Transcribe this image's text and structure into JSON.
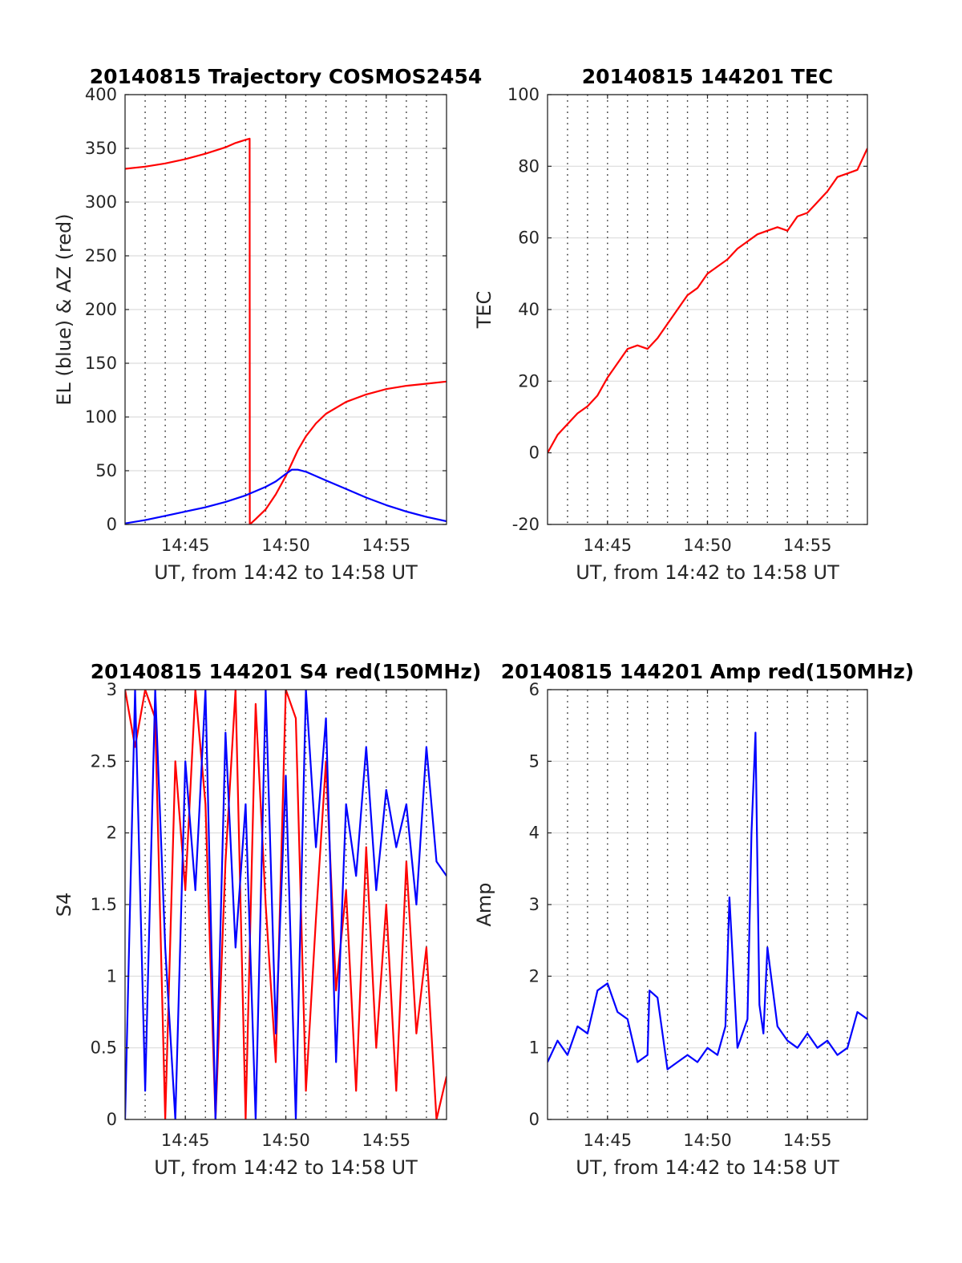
{
  "chart_data": [
    {
      "id": "trajectory",
      "type": "line",
      "title": "20140815 Trajectory COSMOS2454",
      "xlabel": "UT, from 14:42 to 14:58 UT",
      "ylabel": "EL (blue) & AZ (red)",
      "xlim": [
        0,
        16
      ],
      "ylim": [
        0,
        400
      ],
      "xticks": [
        3,
        8,
        13
      ],
      "xtick_labels": [
        "14:45",
        "14:50",
        "14:55"
      ],
      "yticks": [
        0,
        50,
        100,
        150,
        200,
        250,
        300,
        350,
        400
      ],
      "ytick_labels": [
        "0",
        "50",
        "100",
        "150",
        "200",
        "250",
        "300",
        "350",
        "400"
      ],
      "grid": true,
      "series": [
        {
          "color": "#ff0000",
          "x": [
            0,
            1,
            2,
            3,
            4,
            5,
            5.5,
            6,
            6.2,
            6.21,
            6.5,
            7,
            7.5,
            8,
            8.3,
            8.6,
            9,
            9.5,
            10,
            11,
            12,
            13,
            14,
            15,
            16
          ],
          "y": [
            331,
            333,
            336,
            340,
            345,
            351,
            355,
            358,
            359,
            0,
            5,
            14,
            28,
            45,
            57,
            69,
            82,
            94,
            103,
            114,
            121,
            126,
            129,
            131,
            133
          ]
        },
        {
          "color": "#0000ff",
          "x": [
            0,
            1,
            2,
            3,
            4,
            5,
            6,
            7,
            7.5,
            8,
            8.3,
            8.6,
            9,
            10,
            11,
            12,
            13,
            14,
            15,
            16
          ],
          "y": [
            1,
            4,
            8,
            12,
            16,
            21,
            27,
            35,
            40,
            47,
            51,
            51,
            49,
            41,
            33,
            25,
            18,
            12,
            7,
            3
          ]
        }
      ]
    },
    {
      "id": "tec",
      "type": "line",
      "title": "20140815 144201 TEC",
      "xlabel": "UT, from 14:42 to 14:58 UT",
      "ylabel": "TEC",
      "xlim": [
        0,
        16
      ],
      "ylim": [
        -20,
        100
      ],
      "xticks": [
        3,
        8,
        13
      ],
      "xtick_labels": [
        "14:45",
        "14:50",
        "14:55"
      ],
      "yticks": [
        -20,
        0,
        20,
        40,
        60,
        80,
        100
      ],
      "ytick_labels": [
        "-20",
        "0",
        "20",
        "40",
        "60",
        "80",
        "100"
      ],
      "grid": true,
      "series": [
        {
          "color": "#ff0000",
          "x": [
            0,
            0.5,
            1,
            1.5,
            2,
            2.5,
            3,
            3.5,
            4,
            4.5,
            5,
            5.5,
            6,
            6.5,
            7,
            7.5,
            8,
            8.5,
            9,
            9.5,
            10,
            10.5,
            11,
            11.5,
            12,
            12.5,
            13,
            13.5,
            14,
            14.5,
            15,
            15.5,
            16
          ],
          "y": [
            0,
            5,
            8,
            11,
            13,
            16,
            21,
            25,
            29,
            30,
            29,
            32,
            36,
            40,
            44,
            46,
            50,
            52,
            54,
            57,
            59,
            61,
            62,
            63,
            62,
            66,
            67,
            70,
            73,
            77,
            78,
            79,
            85
          ]
        }
      ]
    },
    {
      "id": "s4",
      "type": "line",
      "title": "20140815 144201 S4 red(150MHz)",
      "xlabel": "UT, from 14:42 to 14:58 UT",
      "ylabel": "S4",
      "xlim": [
        0,
        16
      ],
      "ylim": [
        0,
        3
      ],
      "xticks": [
        3,
        8,
        13
      ],
      "xtick_labels": [
        "14:45",
        "14:50",
        "14:55"
      ],
      "yticks": [
        0,
        0.5,
        1,
        1.5,
        2,
        2.5,
        3
      ],
      "ytick_labels": [
        "0",
        "0.5",
        "1",
        "1.5",
        "2",
        "2.5",
        "3"
      ],
      "grid": true,
      "series": [
        {
          "color": "#ff0000",
          "x": [
            0,
            0.5,
            1,
            1.5,
            2,
            2.5,
            3,
            3.5,
            4,
            4.5,
            5,
            5.5,
            6,
            6.5,
            7,
            7.5,
            8,
            8.5,
            9,
            9.5,
            10,
            10.5,
            11,
            11.5,
            12,
            12.5,
            13,
            13.5,
            14,
            14.5,
            15,
            15.5,
            16
          ],
          "y": [
            3,
            2.6,
            3,
            2.8,
            0,
            2.5,
            1.6,
            3,
            2.2,
            0,
            1.8,
            3,
            0,
            2.9,
            1.5,
            0.4,
            3,
            2.8,
            0.2,
            1.4,
            2.5,
            0.9,
            1.6,
            0.2,
            1.9,
            0.5,
            1.5,
            0.2,
            1.8,
            0.6,
            1.2,
            0,
            0.3
          ]
        },
        {
          "color": "#0000ff",
          "x": [
            0,
            0.5,
            1,
            1.5,
            2,
            2.5,
            3,
            3.5,
            4,
            4.5,
            5,
            5.5,
            6,
            6.5,
            7,
            7.5,
            8,
            8.5,
            9,
            9.5,
            10,
            10.5,
            11,
            11.5,
            12,
            12.5,
            13,
            13.5,
            14,
            14.5,
            15,
            15.5,
            16
          ],
          "y": [
            0,
            3,
            0.2,
            3,
            1.2,
            0,
            2.5,
            1.6,
            3,
            0,
            2.7,
            1.2,
            2.2,
            0,
            3,
            0.6,
            2.4,
            0,
            3,
            1.9,
            2.8,
            0.4,
            2.2,
            1.7,
            2.6,
            1.6,
            2.3,
            1.9,
            2.2,
            1.5,
            2.6,
            1.8,
            1.7
          ]
        }
      ]
    },
    {
      "id": "amp",
      "type": "line",
      "title": "20140815 144201 Amp red(150MHz)",
      "xlabel": "UT, from 14:42 to 14:58 UT",
      "ylabel": "Amp",
      "xlim": [
        0,
        16
      ],
      "ylim": [
        0,
        6
      ],
      "xticks": [
        3,
        8,
        13
      ],
      "xtick_labels": [
        "14:45",
        "14:50",
        "14:55"
      ],
      "yticks": [
        0,
        1,
        2,
        3,
        4,
        5,
        6
      ],
      "ytick_labels": [
        "0",
        "1",
        "2",
        "3",
        "4",
        "5",
        "6"
      ],
      "grid": true,
      "series": [
        {
          "color": "#0000ff",
          "x": [
            0,
            0.5,
            1,
            1.5,
            2,
            2.5,
            3,
            3.5,
            4,
            4.5,
            5,
            5.1,
            5.5,
            6,
            6.5,
            7,
            7.5,
            8,
            8.5,
            8.9,
            9.1,
            9.5,
            10,
            10.2,
            10.4,
            10.6,
            10.8,
            11,
            11.5,
            12,
            12.5,
            13,
            13.5,
            14,
            14.5,
            15,
            15.5,
            16
          ],
          "y": [
            0.8,
            1.1,
            0.9,
            1.3,
            1.2,
            1.8,
            1.9,
            1.5,
            1.4,
            0.8,
            0.9,
            1.8,
            1.7,
            0.7,
            0.8,
            0.9,
            0.8,
            1.0,
            0.9,
            1.3,
            3.1,
            1.0,
            1.4,
            4.0,
            5.4,
            1.6,
            1.2,
            2.4,
            1.3,
            1.1,
            1.0,
            1.2,
            1.0,
            1.1,
            0.9,
            1.0,
            1.5,
            1.4
          ]
        }
      ]
    }
  ]
}
